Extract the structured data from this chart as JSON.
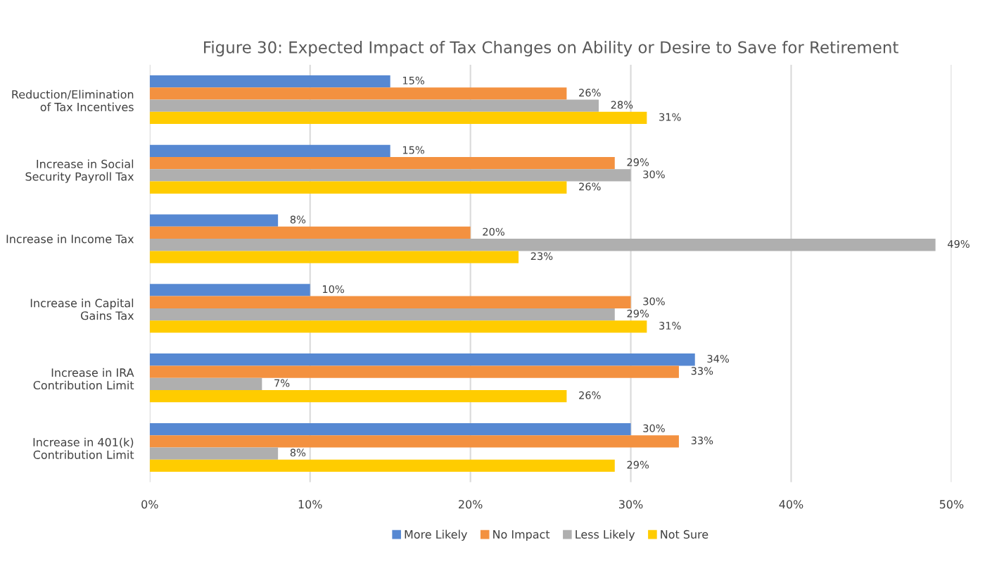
{
  "chart_data": {
    "type": "bar",
    "orientation": "horizontal",
    "title": "Figure 30: Expected Impact of Tax Changes on Ability or Desire to Save for Retirement",
    "categories": [
      "Reduction/Elimination\nof Tax Incentives",
      "Increase in Social\nSecurity Payroll Tax",
      "Increase in Income Tax",
      "Increase in Capital\nGains Tax",
      "Increase in IRA\nContribution Limit",
      "Increase in 401(k)\nContribution Limit"
    ],
    "series": [
      {
        "name": "More Likely",
        "color": "#5688d2",
        "values": [
          15,
          15,
          8,
          10,
          34,
          30
        ],
        "value_labels": [
          "15%",
          "15%",
          "8%",
          "10%",
          "34%",
          "30%"
        ]
      },
      {
        "name": "No Impact",
        "color": "#f39140",
        "values": [
          26,
          29,
          20,
          30,
          33,
          33
        ],
        "value_labels": [
          "26%",
          "29%",
          "20%",
          "30%",
          "33%",
          "33%"
        ]
      },
      {
        "name": "Less Likely",
        "color": "#afafaf",
        "values": [
          28,
          30,
          49,
          29,
          7,
          8
        ],
        "value_labels": [
          "28%",
          "30%",
          "49%",
          "29%",
          "7%",
          "8%"
        ]
      },
      {
        "name": "Not Sure",
        "color": "#ffcc00",
        "values": [
          31,
          26,
          23,
          31,
          26,
          29
        ],
        "value_labels": [
          "31%",
          "26%",
          "23%",
          "31%",
          "26%",
          "29%"
        ]
      }
    ],
    "xlim": [
      0,
      50
    ],
    "xticks": [
      {
        "value": 0,
        "label": "0%"
      },
      {
        "value": 10,
        "label": "10%"
      },
      {
        "value": 20,
        "label": "20%"
      },
      {
        "value": 30,
        "label": "30%"
      },
      {
        "value": 40,
        "label": "40%"
      },
      {
        "value": 50,
        "label": "50%"
      }
    ],
    "grid": "x",
    "legend": "bottom"
  }
}
